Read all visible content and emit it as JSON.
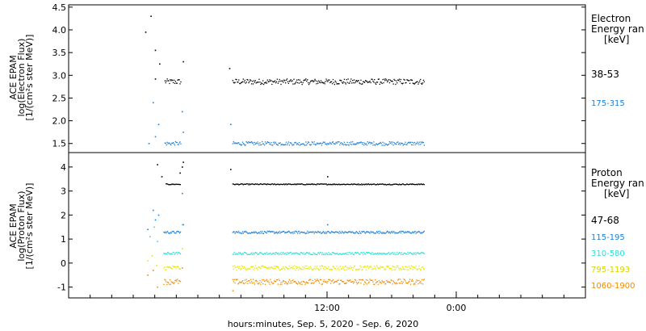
{
  "chart_data": {
    "type": "scatter",
    "x_axis": {
      "label": "hours:minutes, Sep.  5, 2020 - Sep.  6, 2020",
      "ticks": [
        "12:00",
        "0:00"
      ],
      "range_hours": [
        0,
        48
      ],
      "tick_hours": [
        24,
        36
      ]
    },
    "panels": [
      {
        "name": "electron",
        "ylabel": [
          "ACE EPAM",
          "log(Electron Flux)",
          "[1/(cm²s ster MeV)]"
        ],
        "ylim": [
          1.3,
          4.55
        ],
        "yticks": [
          "1.5",
          "2.0",
          "2.5",
          "3.0",
          "3.5",
          "4.0",
          "4.5"
        ],
        "legend_title": [
          "Electron",
          "Energy ran",
          "[keV]"
        ],
        "series": [
          {
            "name": "38-53",
            "color": "#000000",
            "baseline": 2.86,
            "noise": 0.06,
            "segments": [
              [
                8.9,
                10.4
              ],
              [
                15.2,
                33.0
              ]
            ],
            "extra_points": [
              [
                7.1,
                3.95
              ],
              [
                7.6,
                4.3
              ],
              [
                8.0,
                3.55
              ],
              [
                8.4,
                3.25
              ],
              [
                8.0,
                2.92
              ],
              [
                10.6,
                3.3
              ],
              [
                14.9,
                3.15
              ]
            ]
          },
          {
            "name": "175-315",
            "color": "#1e7fd6",
            "baseline": 1.5,
            "noise": 0.04,
            "segments": [
              [
                8.9,
                10.4
              ],
              [
                15.2,
                33.0
              ]
            ],
            "extra_points": [
              [
                7.4,
                1.5
              ],
              [
                7.8,
                2.4
              ],
              [
                8.3,
                1.92
              ],
              [
                8.0,
                1.65
              ],
              [
                10.5,
                2.2
              ],
              [
                10.6,
                1.75
              ],
              [
                15.0,
                1.92
              ]
            ]
          }
        ]
      },
      {
        "name": "proton",
        "ylabel": [
          "ACE EPAM",
          "log(Proton Flux)",
          "[1/(cm²s ster MeV)]"
        ],
        "ylim": [
          -1.45,
          4.6
        ],
        "yticks": [
          "-1",
          "0",
          "1",
          "2",
          "3",
          "4"
        ],
        "legend_title": [
          "Proton",
          "Energy ran",
          "[keV]"
        ],
        "series": [
          {
            "name": "47-68",
            "color": "#000000",
            "baseline": 3.28,
            "noise": 0.02,
            "segments": [
              [
                9.0,
                10.4
              ],
              [
                15.2,
                33.0
              ]
            ],
            "extra_points": [
              [
                8.2,
                4.1
              ],
              [
                8.6,
                3.6
              ],
              [
                10.5,
                4.0
              ],
              [
                10.6,
                4.2
              ],
              [
                10.3,
                3.75
              ],
              [
                15.0,
                3.9
              ],
              [
                24.0,
                3.6
              ]
            ]
          },
          {
            "name": "115-195",
            "color": "#1e7fd6",
            "baseline": 1.28,
            "noise": 0.05,
            "segments": [
              [
                8.8,
                10.4
              ],
              [
                15.2,
                33.0
              ]
            ],
            "extra_points": [
              [
                7.3,
                1.4
              ],
              [
                7.8,
                2.2
              ],
              [
                8.0,
                1.8
              ],
              [
                8.3,
                2.0
              ],
              [
                10.5,
                2.9
              ],
              [
                10.6,
                1.6
              ],
              [
                24.0,
                1.6
              ]
            ]
          },
          {
            "name": "310-580",
            "color": "#2ee0d8",
            "baseline": 0.4,
            "noise": 0.05,
            "segments": [
              [
                8.8,
                10.4
              ],
              [
                15.2,
                33.0
              ]
            ],
            "extra_points": [
              [
                7.5,
                1.1
              ],
              [
                7.9,
                1.5
              ],
              [
                8.2,
                0.9
              ],
              [
                10.5,
                1.6
              ]
            ]
          },
          {
            "name": "795-1193",
            "color": "#e6e600",
            "baseline": -0.2,
            "noise": 0.09,
            "segments": [
              [
                8.8,
                10.4
              ],
              [
                15.2,
                33.0
              ]
            ],
            "extra_points": [
              [
                7.3,
                0.1
              ],
              [
                7.7,
                0.3
              ],
              [
                8.1,
                -0.1
              ],
              [
                10.5,
                0.6
              ]
            ]
          },
          {
            "name": "1060-1900",
            "color": "#f08a00",
            "baseline": -0.78,
            "noise": 0.11,
            "segments": [
              [
                8.8,
                10.4
              ],
              [
                15.2,
                33.0
              ]
            ],
            "extra_points": [
              [
                7.3,
                -0.5
              ],
              [
                7.8,
                -0.3
              ],
              [
                8.2,
                -1.0
              ],
              [
                10.5,
                -0.2
              ],
              [
                15.2,
                -1.15
              ]
            ]
          }
        ]
      }
    ],
    "grid": false,
    "legend_placement": "right"
  }
}
